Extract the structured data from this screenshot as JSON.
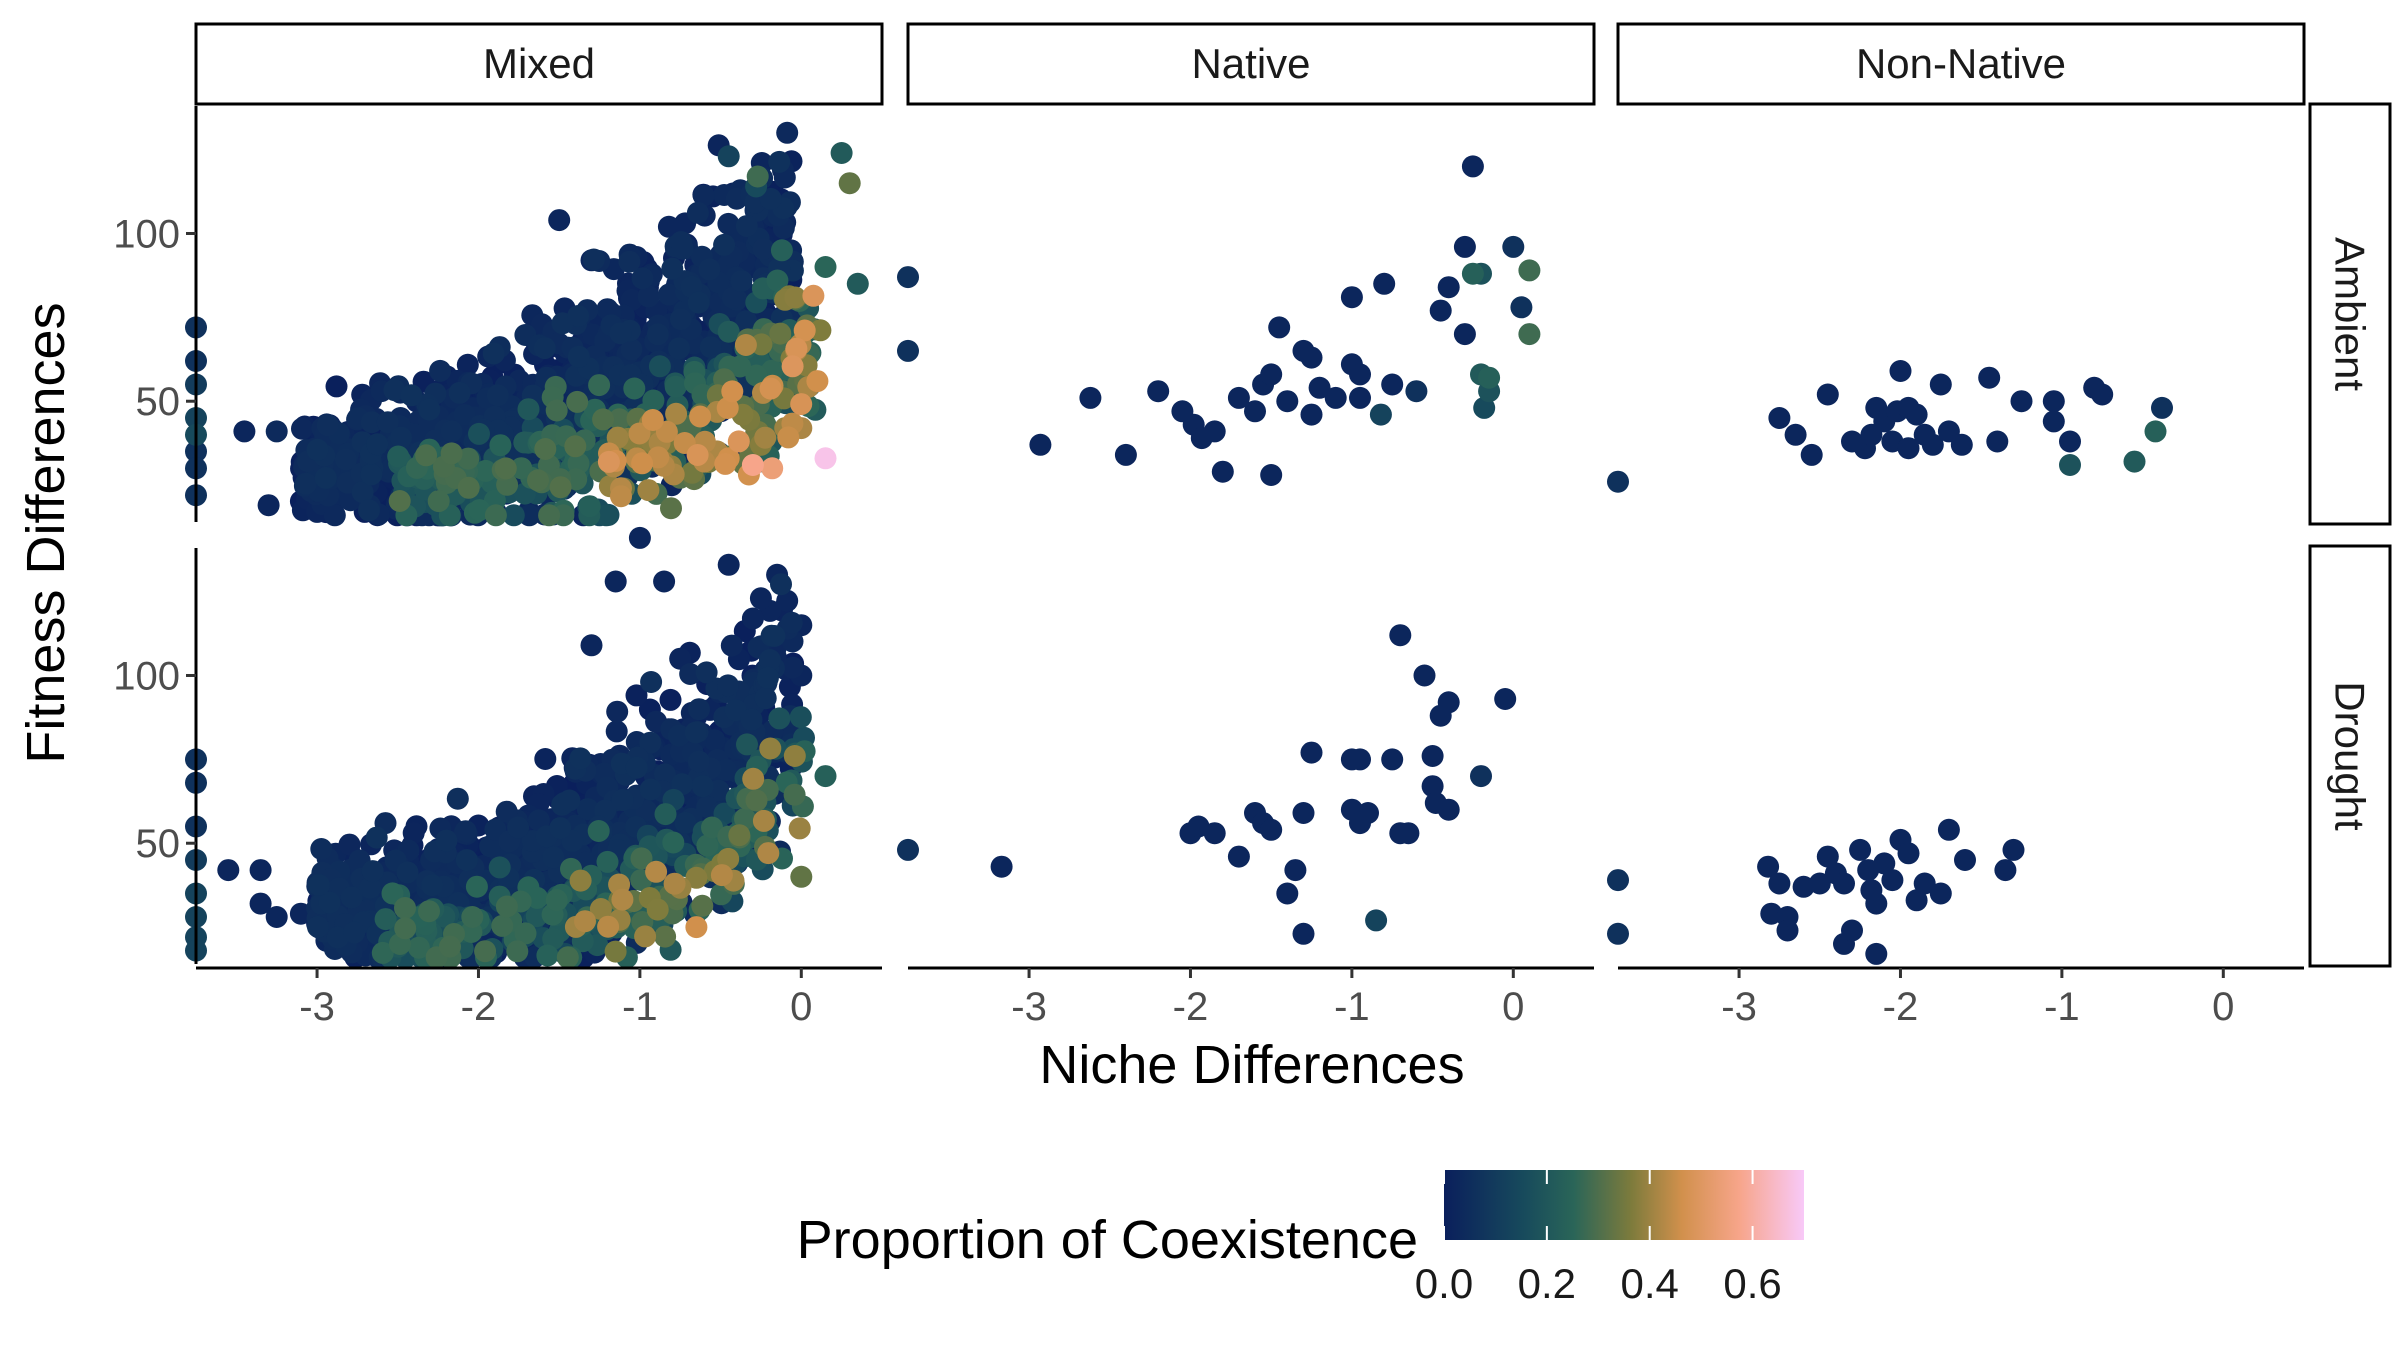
{
  "chart_data": {
    "type": "scatter",
    "facet_columns": [
      "Mixed",
      "Native",
      "Non-Native"
    ],
    "facet_rows": [
      "Ambient",
      "Drought"
    ],
    "xlabel": "Niche Differences",
    "ylabel": "Fitness Differences",
    "xlim": [
      -3.75,
      0.5
    ],
    "ylim": [
      14,
      138
    ],
    "x_ticks": [
      -3,
      -2,
      -1,
      0
    ],
    "x_tick_labels": [
      "-3",
      "-2",
      "-1",
      "0"
    ],
    "y_ticks": [
      50,
      100
    ],
    "y_tick_labels": [
      "50",
      "100"
    ],
    "grid": false,
    "legend": {
      "title": "Proportion of Coexistence",
      "position": "bottom",
      "type": "colorbar",
      "range": [
        0,
        0.7
      ],
      "ticks": [
        0.0,
        0.2,
        0.4,
        0.6
      ],
      "tick_labels": [
        "0.0",
        "0.2",
        "0.4",
        "0.6"
      ],
      "colors": [
        "#0a1f5c",
        "#174a5c",
        "#2a6558",
        "#7d7b3c",
        "#d1904c",
        "#f7a58a",
        "#f8c9f8"
      ]
    },
    "panels": [
      {
        "column": "Mixed",
        "row": "Ambient",
        "seed": 11,
        "points": [
          [
            -0.45,
            123,
            0.1
          ],
          [
            -0.28,
            114,
            0.12
          ],
          [
            -0.27,
            117,
            0.25
          ],
          [
            0.25,
            124,
            0.18
          ],
          [
            0.3,
            115,
            0.3
          ],
          [
            0.35,
            85,
            0.18
          ],
          [
            -0.72,
            103,
            0.02
          ],
          [
            -0.82,
            102,
            0.02
          ],
          [
            -1.02,
            93,
            0.02
          ],
          [
            -0.35,
            98,
            0.03
          ],
          [
            -0.12,
            95,
            0.2
          ],
          [
            0.15,
            90,
            0.22
          ],
          [
            0.05,
            72,
            0.28
          ],
          [
            0.1,
            56,
            0.45
          ],
          [
            0.15,
            33,
            0.68
          ],
          [
            -0.3,
            31,
            0.55
          ],
          [
            -0.18,
            30,
            0.52
          ],
          [
            -0.45,
            33,
            0.45
          ],
          [
            0.0,
            42,
            0.4
          ],
          [
            -0.1,
            42,
            0.38
          ],
          [
            -0.25,
            37,
            0.35
          ],
          [
            -3.25,
            41,
            0.03
          ],
          [
            -3.45,
            41,
            0.02
          ],
          [
            -3.3,
            19,
            0.02
          ],
          [
            -3.0,
            17,
            0.02
          ],
          [
            -1.5,
            104,
            0.02
          ],
          [
            -1.3,
            92,
            0.02
          ],
          [
            -3.75,
            72,
            0.05
          ],
          [
            -3.75,
            62,
            0.05
          ],
          [
            -3.75,
            55,
            0.08
          ],
          [
            -3.75,
            45,
            0.1
          ],
          [
            -3.75,
            40,
            0.12
          ],
          [
            -3.75,
            35,
            0.05
          ],
          [
            -3.75,
            30,
            0.05
          ],
          [
            -3.75,
            22,
            0.05
          ]
        ],
        "clusters": [
          {
            "n": 1100,
            "x": [
              -3.1,
              -0.05
            ],
            "curve": [
              22,
              22,
              65,
              1.9,
              16
            ],
            "noise": 9,
            "shade": [
              0.0,
              0.05
            ]
          },
          {
            "n": 260,
            "x": [
              -2.5,
              0.1
            ],
            "curve": [
              18,
              18,
              50,
              2.1,
              12
            ],
            "noise": 7,
            "shade": [
              0.12,
              0.28
            ]
          },
          {
            "n": 90,
            "x": [
              -1.2,
              0.15
            ],
            "curve": [
              22,
              26,
              40,
              2.2,
              10
            ],
            "noise": 7,
            "shade": [
              0.28,
              0.48
            ]
          }
        ]
      },
      {
        "column": "Native",
        "row": "Ambient",
        "points": [
          [
            -3.75,
            87,
            0.05
          ],
          [
            -3.75,
            65,
            0.05
          ],
          [
            -2.93,
            37,
            0.02
          ],
          [
            -2.62,
            51,
            0.02
          ],
          [
            -2.4,
            34,
            0.02
          ],
          [
            -2.2,
            53,
            0.02
          ],
          [
            -2.05,
            47,
            0.02
          ],
          [
            -1.98,
            43,
            0.02
          ],
          [
            -1.93,
            39,
            0.02
          ],
          [
            -1.85,
            41,
            0.02
          ],
          [
            -1.8,
            29,
            0.02
          ],
          [
            -1.7,
            51,
            0.02
          ],
          [
            -1.6,
            47,
            0.02
          ],
          [
            -1.55,
            55,
            0.02
          ],
          [
            -1.5,
            58,
            0.02
          ],
          [
            -1.5,
            28,
            0.02
          ],
          [
            -1.45,
            72,
            0.02
          ],
          [
            -1.4,
            50,
            0.02
          ],
          [
            -1.3,
            65,
            0.02
          ],
          [
            -1.25,
            63,
            0.02
          ],
          [
            -1.25,
            46,
            0.02
          ],
          [
            -1.2,
            54,
            0.02
          ],
          [
            -1.0,
            81,
            0.02
          ],
          [
            -1.0,
            61,
            0.02
          ],
          [
            -0.95,
            58,
            0.02
          ],
          [
            -1.1,
            51,
            0.02
          ],
          [
            -0.95,
            51,
            0.02
          ],
          [
            -0.8,
            85,
            0.02
          ],
          [
            -0.82,
            46,
            0.1
          ],
          [
            -0.75,
            55,
            0.02
          ],
          [
            -0.6,
            53,
            0.05
          ],
          [
            -0.45,
            77,
            0.02
          ],
          [
            -0.4,
            84,
            0.02
          ],
          [
            -0.3,
            96,
            0.02
          ],
          [
            -0.3,
            70,
            0.02
          ],
          [
            -0.25,
            120,
            0.02
          ],
          [
            -0.25,
            88,
            0.2
          ],
          [
            -0.2,
            58,
            0.18
          ],
          [
            -0.15,
            57,
            0.2
          ],
          [
            -0.15,
            53,
            0.15
          ],
          [
            -0.18,
            48,
            0.12
          ],
          [
            -0.2,
            88,
            0.15
          ],
          [
            0.0,
            96,
            0.05
          ],
          [
            0.05,
            78,
            0.05
          ],
          [
            0.1,
            89,
            0.25
          ],
          [
            0.1,
            70,
            0.25
          ]
        ]
      },
      {
        "column": "Non-Native",
        "row": "Ambient",
        "points": [
          [
            -3.75,
            26,
            0.05
          ],
          [
            -2.75,
            45,
            0.02
          ],
          [
            -2.65,
            40,
            0.02
          ],
          [
            -2.55,
            34,
            0.02
          ],
          [
            -2.45,
            52,
            0.02
          ],
          [
            -2.3,
            38,
            0.02
          ],
          [
            -2.22,
            36,
            0.02
          ],
          [
            -2.18,
            40,
            0.02
          ],
          [
            -2.15,
            48,
            0.02
          ],
          [
            -2.1,
            44,
            0.02
          ],
          [
            -2.05,
            38,
            0.02
          ],
          [
            -2.02,
            47,
            0.02
          ],
          [
            -2.0,
            59,
            0.02
          ],
          [
            -1.95,
            48,
            0.02
          ],
          [
            -1.95,
            36,
            0.02
          ],
          [
            -1.9,
            46,
            0.02
          ],
          [
            -1.85,
            40,
            0.02
          ],
          [
            -1.8,
            37,
            0.02
          ],
          [
            -1.75,
            55,
            0.02
          ],
          [
            -1.7,
            41,
            0.02
          ],
          [
            -1.62,
            37,
            0.02
          ],
          [
            -1.45,
            57,
            0.02
          ],
          [
            -1.4,
            38,
            0.02
          ],
          [
            -1.25,
            50,
            0.02
          ],
          [
            -1.05,
            50,
            0.02
          ],
          [
            -1.05,
            44,
            0.02
          ],
          [
            -0.95,
            31,
            0.15
          ],
          [
            -0.95,
            38,
            0.02
          ],
          [
            -0.8,
            54,
            0.02
          ],
          [
            -0.75,
            52,
            0.02
          ],
          [
            -0.55,
            32,
            0.18
          ],
          [
            -0.42,
            41,
            0.2
          ],
          [
            -0.38,
            48,
            0.05
          ]
        ]
      },
      {
        "column": "Mixed",
        "row": "Drought",
        "seed": 23,
        "points": [
          [
            -1.0,
            141,
            0.02
          ],
          [
            -1.15,
            128,
            0.02
          ],
          [
            -0.85,
            128,
            0.02
          ],
          [
            -0.45,
            133,
            0.02
          ],
          [
            -0.15,
            130,
            0.02
          ],
          [
            -0.25,
            123,
            0.02
          ],
          [
            -0.3,
            117,
            0.02
          ],
          [
            -1.3,
            109,
            0.02
          ],
          [
            -0.75,
            105,
            0.02
          ],
          [
            0.0,
            115,
            0.02
          ],
          [
            0.0,
            100,
            0.02
          ],
          [
            -3.55,
            42,
            0.02
          ],
          [
            -3.35,
            42,
            0.02
          ],
          [
            -3.35,
            32,
            0.02
          ],
          [
            -3.25,
            28,
            0.02
          ],
          [
            -3.1,
            29,
            0.02
          ],
          [
            -3.0,
            26,
            0.02
          ],
          [
            -0.65,
            25,
            0.45
          ],
          [
            0.0,
            40,
            0.3
          ],
          [
            0.15,
            70,
            0.2
          ],
          [
            -3.75,
            75,
            0.05
          ],
          [
            -3.75,
            68,
            0.05
          ],
          [
            -3.75,
            55,
            0.05
          ],
          [
            -3.75,
            45,
            0.08
          ],
          [
            -3.75,
            35,
            0.1
          ],
          [
            -3.75,
            28,
            0.1
          ],
          [
            -3.75,
            22,
            0.1
          ],
          [
            -3.75,
            18,
            0.1
          ]
        ],
        "clusters": [
          {
            "n": 1000,
            "x": [
              -3.0,
              -0.05
            ],
            "curve": [
              22,
              24,
              70,
              2.3,
              14
            ],
            "noise": 9,
            "shade": [
              0.0,
              0.05
            ]
          },
          {
            "n": 220,
            "x": [
              -2.6,
              0.05
            ],
            "curve": [
              16,
              18,
              55,
              2.4,
              8
            ],
            "noise": 6,
            "shade": [
              0.1,
              0.26
            ]
          },
          {
            "n": 40,
            "x": [
              -1.5,
              0.0
            ],
            "curve": [
              20,
              22,
              45,
              2.3,
              6
            ],
            "noise": 6,
            "shade": [
              0.26,
              0.42
            ]
          }
        ]
      },
      {
        "column": "Native",
        "row": "Drought",
        "points": [
          [
            -3.75,
            48,
            0.05
          ],
          [
            -3.17,
            43,
            0.02
          ],
          [
            -2.0,
            53,
            0.02
          ],
          [
            -1.95,
            55,
            0.02
          ],
          [
            -1.85,
            53,
            0.02
          ],
          [
            -1.7,
            46,
            0.02
          ],
          [
            -1.6,
            59,
            0.02
          ],
          [
            -1.55,
            56,
            0.02
          ],
          [
            -1.5,
            54,
            0.02
          ],
          [
            -1.35,
            42,
            0.02
          ],
          [
            -1.4,
            35,
            0.02
          ],
          [
            -1.3,
            23,
            0.02
          ],
          [
            -1.3,
            59,
            0.02
          ],
          [
            -1.25,
            77,
            0.02
          ],
          [
            -1.0,
            75,
            0.02
          ],
          [
            -1.0,
            60,
            0.02
          ],
          [
            -0.95,
            75,
            0.02
          ],
          [
            -0.95,
            56,
            0.02
          ],
          [
            -0.9,
            59,
            0.02
          ],
          [
            -0.85,
            27,
            0.1
          ],
          [
            -0.75,
            75,
            0.02
          ],
          [
            -0.7,
            112,
            0.02
          ],
          [
            -0.7,
            53,
            0.02
          ],
          [
            -0.65,
            53,
            0.02
          ],
          [
            -0.55,
            100,
            0.02
          ],
          [
            -0.5,
            76,
            0.02
          ],
          [
            -0.5,
            67,
            0.02
          ],
          [
            -0.48,
            62,
            0.02
          ],
          [
            -0.45,
            88,
            0.02
          ],
          [
            -0.4,
            92,
            0.02
          ],
          [
            -0.4,
            60,
            0.02
          ],
          [
            -0.2,
            70,
            0.05
          ],
          [
            -0.05,
            93,
            0.02
          ]
        ]
      },
      {
        "column": "Non-Native",
        "row": "Drought",
        "points": [
          [
            -3.75,
            39,
            0.05
          ],
          [
            -3.75,
            23,
            0.05
          ],
          [
            -2.82,
            43,
            0.02
          ],
          [
            -2.8,
            29,
            0.02
          ],
          [
            -2.75,
            38,
            0.02
          ],
          [
            -2.7,
            28,
            0.02
          ],
          [
            -2.7,
            24,
            0.02
          ],
          [
            -2.6,
            37,
            0.02
          ],
          [
            -2.5,
            38,
            0.02
          ],
          [
            -2.45,
            46,
            0.02
          ],
          [
            -2.4,
            41,
            0.02
          ],
          [
            -2.35,
            38,
            0.02
          ],
          [
            -2.35,
            20,
            0.02
          ],
          [
            -2.3,
            24,
            0.02
          ],
          [
            -2.25,
            48,
            0.02
          ],
          [
            -2.2,
            42,
            0.02
          ],
          [
            -2.18,
            36,
            0.02
          ],
          [
            -2.15,
            32,
            0.02
          ],
          [
            -2.15,
            17,
            0.02
          ],
          [
            -2.1,
            44,
            0.02
          ],
          [
            -2.05,
            39,
            0.02
          ],
          [
            -2.0,
            51,
            0.02
          ],
          [
            -1.95,
            47,
            0.02
          ],
          [
            -1.9,
            33,
            0.02
          ],
          [
            -1.85,
            38,
            0.02
          ],
          [
            -1.75,
            35,
            0.02
          ],
          [
            -1.7,
            54,
            0.02
          ],
          [
            -1.6,
            45,
            0.02
          ],
          [
            -1.35,
            42,
            0.02
          ],
          [
            -1.3,
            48,
            0.02
          ]
        ]
      }
    ]
  }
}
